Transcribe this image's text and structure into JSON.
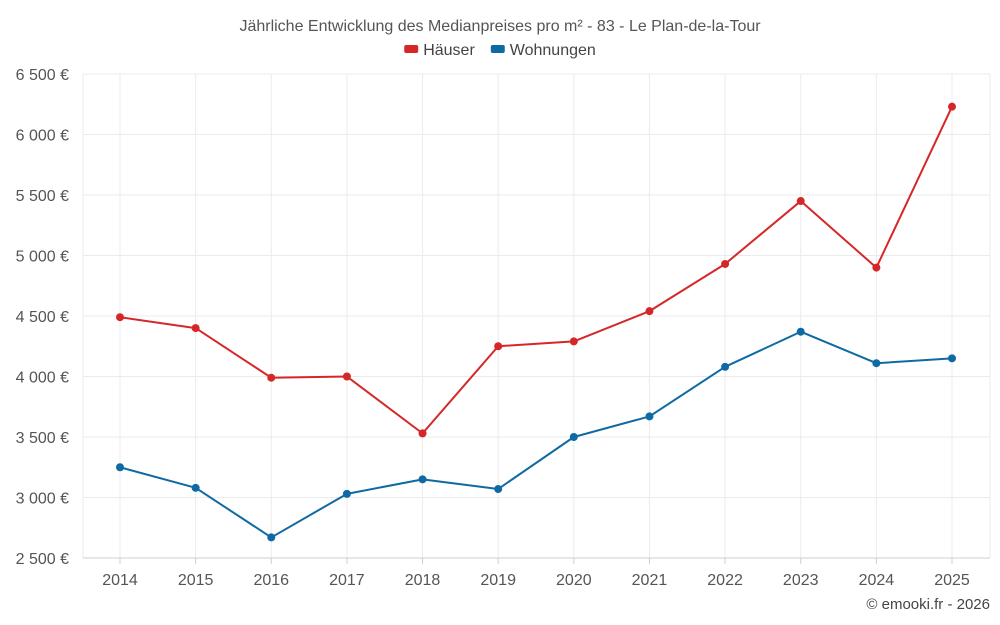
{
  "chart_data": {
    "type": "line",
    "title": "Jährliche Entwicklung des Medianpreises pro m² - 83 - Le Plan-de-la-Tour",
    "categories": [
      "2014",
      "2015",
      "2016",
      "2017",
      "2018",
      "2019",
      "2020",
      "2021",
      "2022",
      "2023",
      "2024",
      "2025"
    ],
    "series": [
      {
        "name": "Häuser",
        "color": "#d62728",
        "values": [
          4490,
          4400,
          3990,
          4000,
          3530,
          4250,
          4290,
          4540,
          4930,
          5450,
          4900,
          6230
        ]
      },
      {
        "name": "Wohnungen",
        "color": "#0f6aa3",
        "values": [
          3250,
          3080,
          2670,
          3030,
          3150,
          3070,
          3500,
          3670,
          4080,
          4370,
          4110,
          4150
        ]
      }
    ],
    "ylim": [
      2500,
      6500
    ],
    "yticks": [
      2500,
      3000,
      3500,
      4000,
      4500,
      5000,
      5500,
      6000,
      6500
    ],
    "ytick_labels": [
      "2 500 €",
      "3 000 €",
      "3 500 €",
      "4 000 €",
      "4 500 €",
      "5 000 €",
      "5 500 €",
      "6 000 €",
      "6 500 €"
    ],
    "xlabel": "",
    "ylabel": "",
    "grid": true,
    "legend_position": "top-center"
  },
  "credit": "© emooki.fr - 2026"
}
